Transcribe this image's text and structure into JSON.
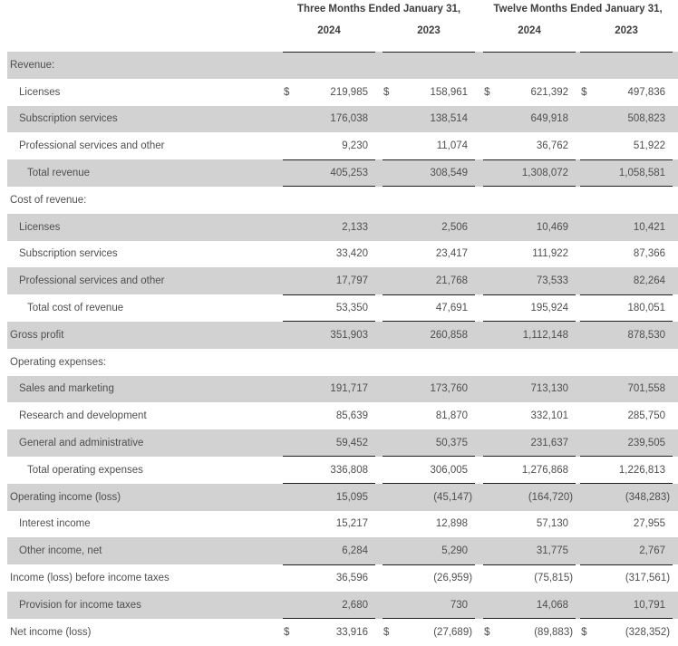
{
  "table": {
    "currency_symbol": "$",
    "col_groups": [
      {
        "label": "Three Months Ended January 31,",
        "years": [
          "2024",
          "2023"
        ]
      },
      {
        "label": "Twelve Months Ended January 31,",
        "years": [
          "2024",
          "2023"
        ]
      }
    ],
    "rows": [
      {
        "label": "Revenue:",
        "indent": 0,
        "shaded": true,
        "dollar": false,
        "rule_top": false,
        "rule_bottom": false,
        "values": [
          "",
          "",
          "",
          ""
        ]
      },
      {
        "label": "Licenses",
        "indent": 1,
        "shaded": false,
        "dollar": true,
        "rule_top": false,
        "rule_bottom": false,
        "values": [
          "219,985",
          "158,961",
          "621,392",
          "497,836"
        ]
      },
      {
        "label": "Subscription services",
        "indent": 1,
        "shaded": true,
        "dollar": false,
        "rule_top": false,
        "rule_bottom": false,
        "values": [
          "176,038",
          "138,514",
          "649,918",
          "508,823"
        ]
      },
      {
        "label": "Professional services and other",
        "indent": 1,
        "shaded": false,
        "dollar": false,
        "rule_top": false,
        "rule_bottom": false,
        "values": [
          "9,230",
          "11,074",
          "36,762",
          "51,922"
        ]
      },
      {
        "label": "Total revenue",
        "indent": 2,
        "shaded": true,
        "dollar": false,
        "rule_top": true,
        "rule_bottom": true,
        "values": [
          "405,253",
          "308,549",
          "1,308,072",
          "1,058,581"
        ]
      },
      {
        "label": "Cost of revenue:",
        "indent": 0,
        "shaded": false,
        "dollar": false,
        "rule_top": false,
        "rule_bottom": false,
        "values": [
          "",
          "",
          "",
          ""
        ]
      },
      {
        "label": "Licenses",
        "indent": 1,
        "shaded": true,
        "dollar": false,
        "rule_top": false,
        "rule_bottom": false,
        "values": [
          "2,133",
          "2,506",
          "10,469",
          "10,421"
        ]
      },
      {
        "label": "Subscription services",
        "indent": 1,
        "shaded": false,
        "dollar": false,
        "rule_top": false,
        "rule_bottom": false,
        "values": [
          "33,420",
          "23,417",
          "111,922",
          "87,366"
        ]
      },
      {
        "label": "Professional services and other",
        "indent": 1,
        "shaded": true,
        "dollar": false,
        "rule_top": false,
        "rule_bottom": false,
        "values": [
          "17,797",
          "21,768",
          "73,533",
          "82,264"
        ]
      },
      {
        "label": "Total cost of revenue",
        "indent": 2,
        "shaded": false,
        "dollar": false,
        "rule_top": true,
        "rule_bottom": true,
        "values": [
          "53,350",
          "47,691",
          "195,924",
          "180,051"
        ]
      },
      {
        "label": "Gross profit",
        "indent": 0,
        "shaded": true,
        "dollar": false,
        "rule_top": false,
        "rule_bottom": false,
        "values": [
          "351,903",
          "260,858",
          "1,112,148",
          "878,530"
        ]
      },
      {
        "label": "Operating expenses:",
        "indent": 0,
        "shaded": false,
        "dollar": false,
        "rule_top": false,
        "rule_bottom": false,
        "values": [
          "",
          "",
          "",
          ""
        ]
      },
      {
        "label": "Sales and marketing",
        "indent": 1,
        "shaded": true,
        "dollar": false,
        "rule_top": false,
        "rule_bottom": false,
        "values": [
          "191,717",
          "173,760",
          "713,130",
          "701,558"
        ]
      },
      {
        "label": "Research and development",
        "indent": 1,
        "shaded": false,
        "dollar": false,
        "rule_top": false,
        "rule_bottom": false,
        "values": [
          "85,639",
          "81,870",
          "332,101",
          "285,750"
        ]
      },
      {
        "label": "General and administrative",
        "indent": 1,
        "shaded": true,
        "dollar": false,
        "rule_top": false,
        "rule_bottom": false,
        "values": [
          "59,452",
          "50,375",
          "231,637",
          "239,505"
        ]
      },
      {
        "label": "Total operating expenses",
        "indent": 2,
        "shaded": false,
        "dollar": false,
        "rule_top": true,
        "rule_bottom": true,
        "values": [
          "336,808",
          "306,005",
          "1,276,868",
          "1,226,813"
        ]
      },
      {
        "label": "Operating income (loss)",
        "indent": 0,
        "shaded": true,
        "dollar": false,
        "rule_top": false,
        "rule_bottom": false,
        "values": [
          "15,095",
          "(45,147)",
          "(164,720)",
          "(348,283)"
        ]
      },
      {
        "label": "Interest income",
        "indent": 1,
        "shaded": false,
        "dollar": false,
        "rule_top": false,
        "rule_bottom": false,
        "values": [
          "15,217",
          "12,898",
          "57,130",
          "27,955"
        ]
      },
      {
        "label": "Other income, net",
        "indent": 1,
        "shaded": true,
        "dollar": false,
        "rule_top": false,
        "rule_bottom": false,
        "values": [
          "6,284",
          "5,290",
          "31,775",
          "2,767"
        ]
      },
      {
        "label": "Income (loss) before income taxes",
        "indent": 0,
        "shaded": false,
        "dollar": false,
        "rule_top": true,
        "rule_bottom": false,
        "values": [
          "36,596",
          "(26,959)",
          "(75,815)",
          "(317,561)"
        ]
      },
      {
        "label": "Provision for income taxes",
        "indent": 1,
        "shaded": true,
        "dollar": false,
        "rule_top": false,
        "rule_bottom": false,
        "values": [
          "2,680",
          "730",
          "14,068",
          "10,791"
        ]
      },
      {
        "label": "Net income (loss)",
        "indent": 0,
        "shaded": false,
        "dollar": true,
        "rule_top": true,
        "rule_bottom": false,
        "values": [
          "33,916",
          "(27,689)",
          "(89,883)",
          "(328,352)"
        ]
      }
    ]
  }
}
